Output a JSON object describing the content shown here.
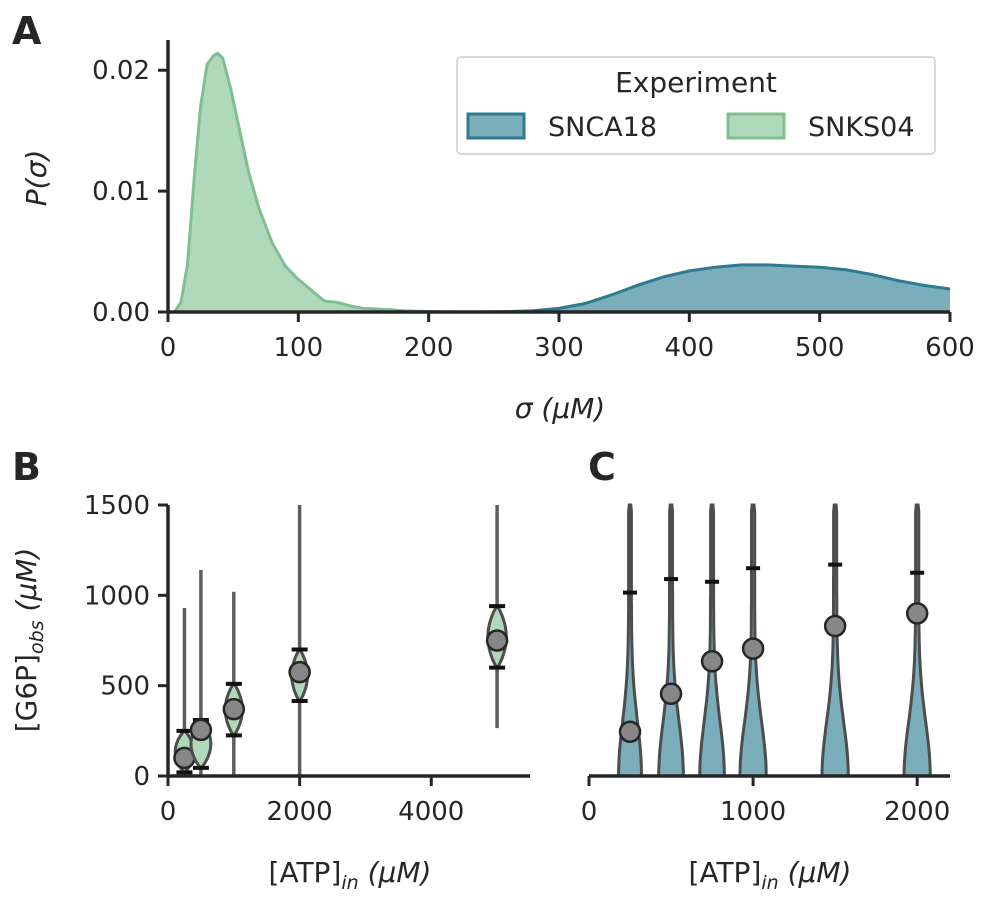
{
  "colors": {
    "snca18": "#2e7a8f",
    "snca18_fill": "#7aaebb",
    "snks04": "#7fbf93",
    "snks04_fill": "#b0d8bb",
    "violin_edge": "#4d4d4d",
    "point_fill": "#878787",
    "axis": "#262626"
  },
  "chart_data": [
    {
      "panel": "A",
      "type": "area",
      "xlabel": "σ (μM)",
      "ylabel": "P(σ)",
      "xlim": [
        0,
        600
      ],
      "ylim": [
        0,
        0.0225
      ],
      "xticks": [
        0,
        100,
        200,
        300,
        400,
        500,
        600
      ],
      "yticks": [
        0.0,
        0.01,
        0.02
      ],
      "ytick_labels": [
        "0.00",
        "0.01",
        "0.02"
      ],
      "legend": {
        "title": "Experiment",
        "placement": "top-right",
        "entries": [
          "SNCA18",
          "SNKS04"
        ]
      },
      "series": [
        {
          "name": "SNCA18",
          "color_key": "snca18",
          "x": [
            240,
            260,
            280,
            300,
            320,
            340,
            360,
            380,
            400,
            420,
            440,
            460,
            480,
            500,
            520,
            540,
            560,
            580,
            600
          ],
          "y": [
            0.0,
            3e-05,
            0.0001,
            0.0003,
            0.0007,
            0.0014,
            0.0022,
            0.0029,
            0.0034,
            0.0037,
            0.0039,
            0.0039,
            0.0038,
            0.0037,
            0.0035,
            0.0031,
            0.0026,
            0.0022,
            0.0019
          ]
        },
        {
          "name": "SNKS04",
          "color_key": "snks04",
          "x": [
            5,
            10,
            15,
            20,
            25,
            30,
            35,
            38,
            42,
            48,
            55,
            62,
            70,
            80,
            90,
            100,
            110,
            120,
            130,
            140,
            150,
            160,
            170,
            180,
            200,
            220
          ],
          "y": [
            0.0,
            0.0008,
            0.004,
            0.011,
            0.017,
            0.0205,
            0.0212,
            0.0214,
            0.021,
            0.0185,
            0.015,
            0.0115,
            0.0085,
            0.0057,
            0.0038,
            0.0027,
            0.0018,
            0.0009,
            0.0008,
            0.0005,
            0.0003,
            0.00025,
            0.0002,
            0.0001,
            4e-05,
            0.0
          ]
        }
      ]
    },
    {
      "panel": "B",
      "type": "violin",
      "xlabel": "[ATP]in (μM)",
      "ylabel": "[G6P]obs (μM)",
      "xlim": [
        0,
        5500
      ],
      "ylim": [
        0,
        1500
      ],
      "xticks": [
        0,
        2000,
        4000
      ],
      "yticks": [
        0,
        500,
        1000,
        1500
      ],
      "groups": [
        {
          "x": 250,
          "mean": 100,
          "lo": 20,
          "hi": 250,
          "min": 0,
          "max": 930,
          "width": 280
        },
        {
          "x": 500,
          "mean": 255,
          "lo": 45,
          "hi": 310,
          "min": 0,
          "max": 1140,
          "width": 300
        },
        {
          "x": 1000,
          "mean": 370,
          "lo": 225,
          "hi": 510,
          "min": 0,
          "max": 1020,
          "width": 260
        },
        {
          "x": 2000,
          "mean": 575,
          "lo": 415,
          "hi": 700,
          "min": 0,
          "max": 1500,
          "width": 240
        },
        {
          "x": 5000,
          "mean": 750,
          "lo": 600,
          "hi": 940,
          "min": 265,
          "max": 1500,
          "width": 280
        }
      ]
    },
    {
      "panel": "C",
      "type": "violin",
      "xlabel": "[ATP]in (μM)",
      "ylabel": "",
      "xlim": [
        0,
        2200
      ],
      "ylim": [
        0,
        1500
      ],
      "xticks": [
        0,
        1000,
        2000
      ],
      "yticks": [],
      "groups": [
        {
          "x": 250,
          "mean": 245,
          "hi": 1015,
          "width": 140
        },
        {
          "x": 500,
          "mean": 455,
          "hi": 1090,
          "width": 150
        },
        {
          "x": 750,
          "mean": 635,
          "hi": 1075,
          "width": 150
        },
        {
          "x": 1000,
          "mean": 705,
          "hi": 1150,
          "width": 160
        },
        {
          "x": 1500,
          "mean": 830,
          "hi": 1170,
          "width": 160
        },
        {
          "x": 2000,
          "mean": 900,
          "hi": 1125,
          "width": 160
        }
      ]
    }
  ],
  "labels": {
    "panel_a": "A",
    "panel_b": "B",
    "panel_c": "C",
    "a_xlabel": "σ (μM)",
    "a_ylabel": "P(σ)",
    "b_xlabel": "[ATP]in (μM)",
    "b_ylabel": "[G6P]obs (μM)",
    "c_xlabel": "[ATP]in (μM)",
    "legend_title": "Experiment",
    "legend_1": "SNCA18",
    "legend_2": "SNKS04"
  }
}
